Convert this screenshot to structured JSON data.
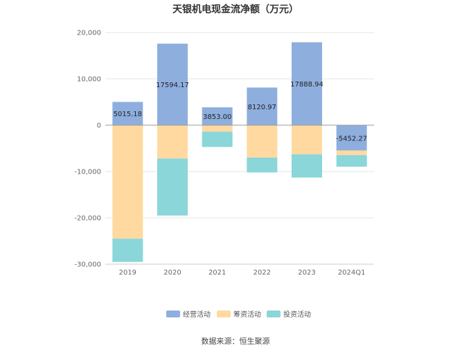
{
  "chart_data": {
    "type": "bar",
    "stacked": true,
    "title": "天银机电现金流净额（万元）",
    "categories": [
      "2019",
      "2020",
      "2021",
      "2022",
      "2023",
      "2024Q1"
    ],
    "series": [
      {
        "name": "经营活动",
        "color": "#8eaede",
        "values": [
          5015.18,
          17594.17,
          3853.0,
          8120.97,
          17888.94,
          -5452.27
        ]
      },
      {
        "name": "筹资活动",
        "color": "#ffd9a0",
        "values": [
          -24500,
          -7200,
          -1400,
          -7000,
          -6300,
          -1000
        ]
      },
      {
        "name": "投资活动",
        "color": "#8ad6d9",
        "values": [
          -5000,
          -12300,
          -3300,
          -3200,
          -5000,
          -2500
        ]
      }
    ],
    "data_labels": [
      "5015.18",
      "17594.17",
      "3853.00",
      "8120.97",
      "17888.94",
      "-5452.27"
    ],
    "y_ticks": [
      "20,000",
      "10,000",
      "0",
      "-10,000",
      "-20,000",
      "-30,000"
    ],
    "ylim": [
      -30000,
      20000
    ],
    "grid": true,
    "legend_position": "bottom",
    "source": "数据来源：恒生聚源"
  }
}
